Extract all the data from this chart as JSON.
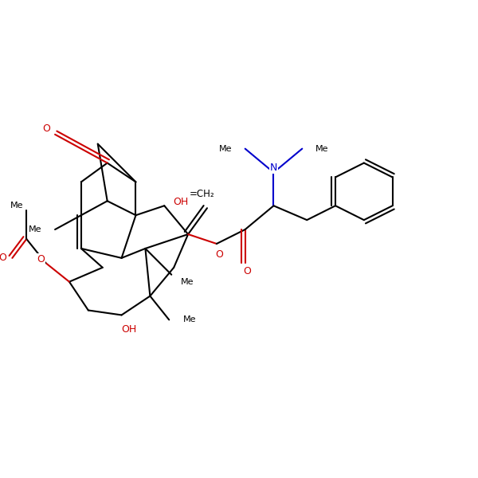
{
  "figsize": [
    6.0,
    6.0
  ],
  "dpi": 100,
  "bg": "#ffffff",
  "black": "#000000",
  "red": "#cc0000",
  "blue": "#0000cc",
  "lw": 1.5,
  "xlim": [
    0,
    10
  ],
  "ylim": [
    0,
    10
  ]
}
